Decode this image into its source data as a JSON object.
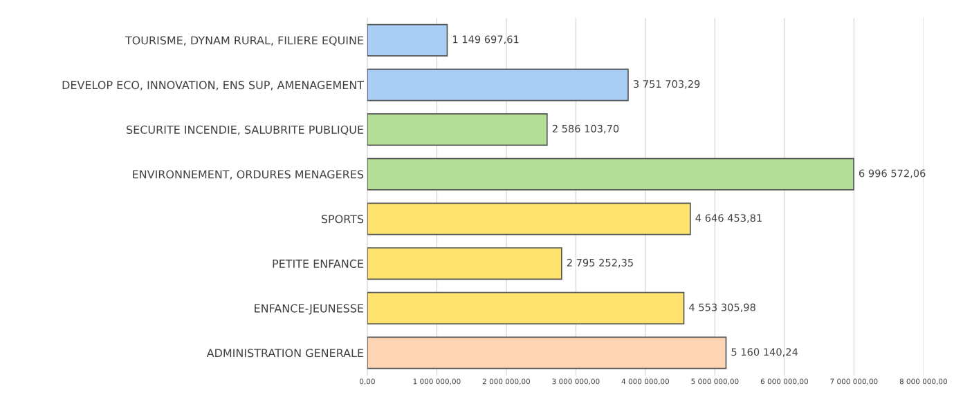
{
  "chart_data": {
    "type": "bar",
    "orientation": "horizontal",
    "categories": [
      "TOURISME, DYNAM RURAL, FILIERE EQUINE",
      "DEVELOP ECO, INNOVATION, ENS SUP, AMENAGEMENT",
      "SECURITE INCENDIE, SALUBRITE PUBLIQUE",
      "ENVIRONNEMENT, ORDURES MENAGERES",
      "SPORTS",
      "PETITE ENFANCE",
      "ENFANCE-JEUNESSE",
      "ADMINISTRATION GENERALE"
    ],
    "values": [
      1149697.61,
      3751703.29,
      2586103.7,
      6996572.06,
      4646453.81,
      2795252.35,
      4553305.98,
      5160140.24
    ],
    "colors": [
      "#a9cdf3",
      "#a9cdf3",
      "#b4de98",
      "#b4de98",
      "#ffe36e",
      "#ffe36e",
      "#ffe36e",
      "#fdd5b5"
    ],
    "value_labels": [
      "1 149 697,61",
      "3 751 703,29",
      "2 586 103,70",
      "6 996 572,06",
      "4 646 453,81",
      "2 795 252,35",
      "4 553 305,98",
      "5 160 140,24"
    ],
    "xlim": [
      0,
      8000000
    ],
    "xticks": [
      {
        "value": 0,
        "label": "0,00"
      },
      {
        "value": 1000000,
        "label": "1 000 000,00"
      },
      {
        "value": 2000000,
        "label": "2 000 000,00"
      },
      {
        "value": 3000000,
        "label": "3 000 000,00"
      },
      {
        "value": 4000000,
        "label": "4 000 000,00"
      },
      {
        "value": 5000000,
        "label": "5 000 000,00"
      },
      {
        "value": 6000000,
        "label": "6 000 000,00"
      },
      {
        "value": 7000000,
        "label": "7 000 000,00"
      },
      {
        "value": 8000000,
        "label": "8 000 000,00"
      }
    ],
    "grid": "x"
  }
}
